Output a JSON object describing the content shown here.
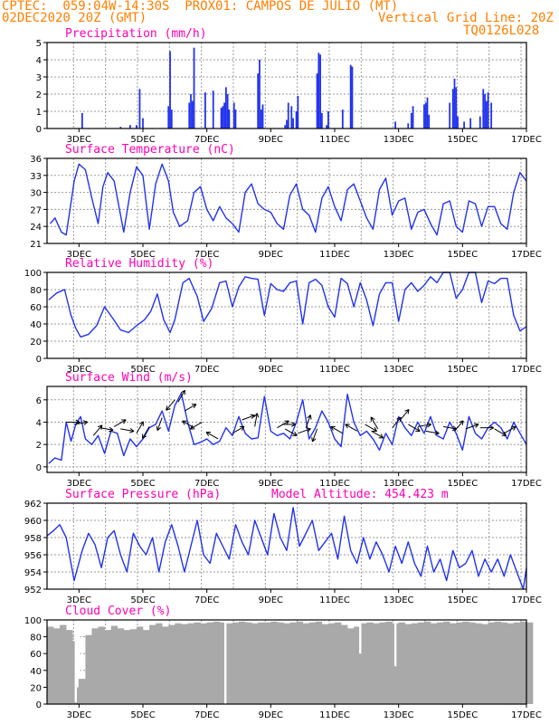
{
  "header": {
    "line1_left": "CPTEC:  059:04W-14:30S  PROX01: CAMPOS DE JULIO (MT)",
    "line2_left": "02DEC2020 20Z (GMT)",
    "line2_right": "Vertical Grid Line: 20Z",
    "line3_right": "TQ0126L028"
  },
  "colors": {
    "header": "#ff7f00",
    "title": "#ff00b0",
    "series": "#2233ee",
    "cloud": "#a9a9a9",
    "grid": "#9a9a9a"
  },
  "x_tick_labels": [
    "3DEC",
    "5DEC",
    "7DEC",
    "9DEC",
    "11DEC",
    "13DEC",
    "15DEC",
    "17DEC"
  ],
  "chart_data": [
    {
      "type": "bar",
      "title": "Precipitation (mm/h)",
      "ylim": [
        0,
        5
      ],
      "yticks": [
        0,
        1,
        2,
        3,
        4,
        5
      ],
      "grid": true,
      "bars": [
        [
          3.1,
          0.9
        ],
        [
          4.3,
          0.1
        ],
        [
          4.6,
          0.2
        ],
        [
          4.8,
          0.2
        ],
        [
          4.9,
          2.3
        ],
        [
          5.0,
          0.6
        ],
        [
          5.8,
          1.3
        ],
        [
          5.85,
          4.5
        ],
        [
          5.9,
          1.1
        ],
        [
          6.45,
          1.5
        ],
        [
          6.5,
          2.0
        ],
        [
          6.55,
          1.6
        ],
        [
          6.6,
          4.7
        ],
        [
          6.95,
          2.1
        ],
        [
          7.2,
          2.2
        ],
        [
          7.45,
          1.2
        ],
        [
          7.5,
          1.3
        ],
        [
          7.55,
          1.5
        ],
        [
          7.6,
          2.4
        ],
        [
          7.65,
          2.0
        ],
        [
          7.7,
          1.1
        ],
        [
          7.85,
          1.5
        ],
        [
          7.9,
          1.1
        ],
        [
          8.6,
          3.2
        ],
        [
          8.65,
          4.0
        ],
        [
          8.7,
          1.1
        ],
        [
          8.75,
          1.4
        ],
        [
          9.45,
          0.2
        ],
        [
          9.5,
          0.5
        ],
        [
          9.55,
          1.5
        ],
        [
          9.65,
          1.3
        ],
        [
          9.7,
          0.6
        ],
        [
          9.8,
          1.0
        ],
        [
          9.85,
          1.9
        ],
        [
          10.45,
          3.2
        ],
        [
          10.5,
          4.4
        ],
        [
          10.55,
          4.3
        ],
        [
          10.6,
          0.9
        ],
        [
          10.75,
          0.2
        ],
        [
          10.8,
          1.0
        ],
        [
          11.25,
          1.1
        ],
        [
          11.5,
          3.7
        ],
        [
          11.55,
          3.6
        ],
        [
          12.9,
          0.4
        ],
        [
          13.3,
          0.3
        ],
        [
          13.4,
          0.9
        ],
        [
          13.45,
          1.3
        ],
        [
          13.8,
          1.4
        ],
        [
          13.85,
          1.5
        ],
        [
          13.9,
          1.8
        ],
        [
          13.95,
          0.8
        ],
        [
          14.6,
          1.5
        ],
        [
          14.7,
          2.3
        ],
        [
          14.75,
          2.9
        ],
        [
          14.8,
          2.4
        ],
        [
          14.85,
          0.7
        ],
        [
          15.05,
          0.4
        ],
        [
          15.25,
          0.6
        ],
        [
          15.55,
          0.7
        ],
        [
          15.65,
          2.3
        ],
        [
          15.7,
          2.0
        ],
        [
          15.75,
          1.6
        ],
        [
          15.8,
          2.1
        ],
        [
          15.9,
          1.5
        ]
      ]
    },
    {
      "type": "line",
      "title": "Surface Temperature (nC)",
      "ylim": [
        21,
        36
      ],
      "yticks": [
        21,
        24,
        27,
        30,
        33,
        36
      ],
      "grid": true,
      "x": [
        2.1,
        2.25,
        2.45,
        2.6,
        2.85,
        3.0,
        3.2,
        3.4,
        3.6,
        3.75,
        3.9,
        4.1,
        4.25,
        4.4,
        4.6,
        4.8,
        5.0,
        5.2,
        5.4,
        5.6,
        5.8,
        5.95,
        6.15,
        6.4,
        6.6,
        6.8,
        7.0,
        7.2,
        7.4,
        7.6,
        7.8,
        8.0,
        8.2,
        8.4,
        8.6,
        8.8,
        9.0,
        9.2,
        9.4,
        9.6,
        9.8,
        10.0,
        10.2,
        10.4,
        10.6,
        10.8,
        11.0,
        11.2,
        11.4,
        11.6,
        11.8,
        12.0,
        12.2,
        12.4,
        12.6,
        12.8,
        13.0,
        13.2,
        13.4,
        13.6,
        13.8,
        14.0,
        14.2,
        14.4,
        14.6,
        14.8,
        15.0,
        15.2,
        15.4,
        15.6,
        15.8,
        16.0,
        16.2,
        16.4,
        16.6,
        16.8,
        17.0
      ],
      "y": [
        24.5,
        25.5,
        23.0,
        22.5,
        32.0,
        35.0,
        34.0,
        29.0,
        24.5,
        31.0,
        33.5,
        32.0,
        27.5,
        23.0,
        30.0,
        34.5,
        33.0,
        23.5,
        31.5,
        35.0,
        32.0,
        26.5,
        24.0,
        25.0,
        30.0,
        31.0,
        27.0,
        25.0,
        27.5,
        25.5,
        24.5,
        23.0,
        30.0,
        31.5,
        28.0,
        27.0,
        26.5,
        24.5,
        23.5,
        29.5,
        31.5,
        27.0,
        26.0,
        23.0,
        29.0,
        31.0,
        27.5,
        25.0,
        30.5,
        31.5,
        28.5,
        25.5,
        23.5,
        30.5,
        32.5,
        26.0,
        28.5,
        29.0,
        23.5,
        26.5,
        27.0,
        24.5,
        22.5,
        28.0,
        28.5,
        24.0,
        23.0,
        28.5,
        28.0,
        24.0,
        27.5,
        27.5,
        24.5,
        23.5,
        30.0,
        33.5,
        32.0
      ]
    },
    {
      "type": "line",
      "title": "Relative Humidity (%)",
      "ylim": [
        0,
        100
      ],
      "yticks": [
        0,
        20,
        40,
        60,
        80,
        100
      ],
      "grid": true,
      "x": [
        2.05,
        2.3,
        2.55,
        2.75,
        2.9,
        3.05,
        3.3,
        3.55,
        3.8,
        4.05,
        4.3,
        4.55,
        4.8,
        5.05,
        5.25,
        5.45,
        5.65,
        5.85,
        6.0,
        6.25,
        6.45,
        6.7,
        6.9,
        7.15,
        7.4,
        7.6,
        7.8,
        8.0,
        8.2,
        8.4,
        8.6,
        8.8,
        9.0,
        9.2,
        9.4,
        9.6,
        9.8,
        10.0,
        10.2,
        10.4,
        10.6,
        10.8,
        11.0,
        11.2,
        11.4,
        11.6,
        11.8,
        12.0,
        12.2,
        12.4,
        12.6,
        12.8,
        13.0,
        13.2,
        13.4,
        13.6,
        13.8,
        14.0,
        14.2,
        14.4,
        14.6,
        14.8,
        15.0,
        15.2,
        15.4,
        15.6,
        15.8,
        16.0,
        16.2,
        16.4,
        16.6,
        16.8,
        17.0
      ],
      "y": [
        68.0,
        76.0,
        80.0,
        50.0,
        35.0,
        25.0,
        28.0,
        38.0,
        60.0,
        47.0,
        33.0,
        30.0,
        38.0,
        45.0,
        55.0,
        75.0,
        45.0,
        30.0,
        45.0,
        88.0,
        93.0,
        72.0,
        43.0,
        58.0,
        88.0,
        90.0,
        60.0,
        83.0,
        95.0,
        93.0,
        92.0,
        50.0,
        87.0,
        80.0,
        78.0,
        88.0,
        90.0,
        40.0,
        88.0,
        92.0,
        85.0,
        60.0,
        48.0,
        93.0,
        87.0,
        60.0,
        88.0,
        68.0,
        38.0,
        75.0,
        88.0,
        88.0,
        43.0,
        80.0,
        88.0,
        78.0,
        85.0,
        95.0,
        88.0,
        100.0,
        100.0,
        70.0,
        80.0,
        100.0,
        100.0,
        65.0,
        90.0,
        87.0,
        93.0,
        93.0,
        50.0,
        32.0,
        37.0
      ]
    },
    {
      "type": "line",
      "title": "Surface Wind (m/s)",
      "ylim": [
        -0.5,
        7.2
      ],
      "yticks": [
        0,
        2,
        4,
        6
      ],
      "grid": true,
      "x": [
        2.05,
        2.25,
        2.45,
        2.6,
        2.75,
        2.9,
        3.05,
        3.2,
        3.4,
        3.6,
        3.8,
        4.0,
        4.2,
        4.4,
        4.6,
        4.8,
        5.0,
        5.2,
        5.4,
        5.6,
        5.8,
        6.0,
        6.2,
        6.4,
        6.6,
        6.8,
        7.0,
        7.2,
        7.4,
        7.6,
        7.8,
        8.0,
        8.2,
        8.4,
        8.6,
        8.8,
        9.0,
        9.2,
        9.4,
        9.6,
        9.8,
        10.0,
        10.2,
        10.4,
        10.6,
        10.8,
        11.0,
        11.2,
        11.4,
        11.6,
        11.8,
        12.0,
        12.2,
        12.4,
        12.6,
        12.8,
        13.0,
        13.2,
        13.4,
        13.6,
        13.8,
        14.0,
        14.2,
        14.4,
        14.6,
        14.8,
        15.0,
        15.2,
        15.4,
        15.6,
        15.8,
        16.0,
        16.2,
        16.4,
        16.6,
        16.8,
        17.0
      ],
      "y": [
        0.3,
        0.8,
        0.6,
        4.0,
        2.3,
        3.8,
        4.5,
        2.5,
        2.0,
        2.8,
        1.2,
        3.2,
        3.0,
        1.0,
        2.5,
        1.8,
        2.5,
        3.5,
        3.8,
        5.0,
        3.2,
        5.5,
        6.6,
        4.0,
        2.0,
        2.2,
        2.5,
        2.0,
        2.3,
        3.5,
        2.8,
        4.5,
        3.0,
        2.5,
        2.6,
        6.3,
        3.2,
        2.8,
        3.0,
        2.5,
        4.0,
        6.0,
        2.5,
        3.5,
        5.0,
        4.0,
        2.5,
        1.8,
        6.5,
        4.0,
        2.8,
        3.2,
        2.5,
        1.5,
        3.0,
        2.0,
        4.5,
        3.5,
        2.8,
        4.0,
        3.0,
        4.5,
        2.8,
        2.5,
        4.0,
        3.0,
        1.5,
        4.5,
        3.0,
        2.5,
        3.5,
        4.0,
        3.5,
        2.5,
        4.0,
        3.0,
        2.0
      ]
    },
    {
      "type": "line",
      "title": "Surface Pressure (hPa)",
      "annotation": "Model Altitude: 454.423 m",
      "ylim": [
        952,
        962
      ],
      "yticks": [
        952,
        954,
        956,
        958,
        960,
        962
      ],
      "grid": true,
      "x": [
        2.0,
        2.2,
        2.4,
        2.6,
        2.85,
        3.1,
        3.3,
        3.5,
        3.7,
        3.9,
        4.1,
        4.3,
        4.5,
        4.7,
        4.9,
        5.1,
        5.3,
        5.5,
        5.7,
        5.9,
        6.1,
        6.3,
        6.5,
        6.7,
        6.9,
        7.1,
        7.3,
        7.5,
        7.7,
        7.9,
        8.1,
        8.3,
        8.5,
        8.7,
        8.9,
        9.1,
        9.3,
        9.5,
        9.7,
        9.9,
        10.1,
        10.3,
        10.5,
        10.7,
        10.9,
        11.1,
        11.3,
        11.5,
        11.7,
        11.9,
        12.1,
        12.3,
        12.5,
        12.7,
        12.9,
        13.1,
        13.3,
        13.5,
        13.7,
        13.9,
        14.1,
        14.3,
        14.5,
        14.7,
        14.9,
        15.1,
        15.3,
        15.5,
        15.7,
        15.9,
        16.1,
        16.3,
        16.5,
        16.7,
        16.9,
        17.0
      ],
      "y": [
        958.2,
        958.8,
        959.5,
        958.0,
        953.0,
        956.5,
        958.5,
        957.2,
        954.5,
        958.0,
        958.8,
        956.0,
        954.0,
        958.5,
        957.0,
        956.0,
        958.0,
        954.0,
        957.5,
        959.5,
        957.0,
        954.0,
        957.0,
        960.0,
        956.0,
        955.0,
        958.5,
        957.0,
        955.5,
        959.5,
        957.5,
        956.0,
        960.0,
        958.0,
        956.0,
        960.8,
        958.0,
        956.5,
        961.5,
        957.0,
        958.5,
        960.0,
        956.5,
        957.5,
        958.5,
        955.5,
        960.5,
        956.5,
        955.0,
        958.0,
        955.5,
        957.5,
        956.0,
        954.0,
        957.0,
        955.0,
        957.5,
        955.0,
        953.5,
        957.0,
        954.0,
        955.5,
        953.0,
        956.5,
        954.5,
        955.0,
        956.5,
        953.5,
        955.5,
        954.0,
        955.5,
        953.5,
        956.0,
        954.0,
        952.0,
        954.5
      ]
    },
    {
      "type": "bar",
      "title": "Cloud Cover (%)",
      "ylim": [
        0,
        100
      ],
      "yticks": [
        0,
        20,
        40,
        60,
        80,
        100
      ],
      "grid": true,
      "x": [
        2.0,
        2.2,
        2.4,
        2.6,
        2.8,
        3.0,
        3.2,
        3.4,
        3.6,
        3.8,
        4.0,
        4.2,
        4.4,
        4.6,
        4.8,
        5.0,
        5.2,
        5.4,
        5.6,
        5.8,
        6.0,
        6.2,
        6.4,
        6.6,
        6.8,
        7.0,
        7.2,
        7.4,
        7.6,
        7.8,
        8.0,
        8.2,
        8.4,
        8.6,
        8.8,
        9.0,
        9.2,
        9.4,
        9.6,
        9.8,
        10.0,
        10.2,
        10.4,
        10.6,
        10.8,
        11.0,
        11.2,
        11.4,
        11.6,
        11.8,
        12.0,
        12.2,
        12.4,
        12.6,
        12.8,
        13.0,
        13.2,
        13.4,
        13.6,
        13.8,
        14.0,
        14.2,
        14.4,
        14.6,
        14.8,
        15.0,
        15.2,
        15.4,
        15.6,
        15.8,
        16.0,
        16.2,
        16.4,
        16.6,
        16.8,
        17.0
      ],
      "values": [
        92,
        90,
        94,
        88,
        75,
        30,
        82,
        90,
        92,
        88,
        93,
        90,
        88,
        89,
        92,
        88,
        94,
        96,
        92,
        94,
        96,
        95,
        96,
        97,
        96,
        97,
        98,
        97,
        96,
        97,
        98,
        97,
        96,
        97,
        97,
        98,
        97,
        96,
        97,
        98,
        96,
        97,
        98,
        95,
        96,
        97,
        94,
        90,
        92,
        96,
        97,
        96,
        97,
        98,
        96,
        97,
        95,
        96,
        97,
        98,
        96,
        97,
        98,
        96,
        97,
        98,
        97,
        96,
        95,
        97,
        98,
        97,
        96,
        97,
        98,
        97
      ],
      "dips": [
        [
          2.9,
          2
        ],
        [
          3.0,
          30
        ],
        [
          2.95,
          20
        ],
        [
          7.58,
          0
        ],
        [
          11.8,
          60
        ],
        [
          12.9,
          45
        ]
      ]
    }
  ],
  "wind_barbs": [
    [
      2.6,
      4.0,
      90
    ],
    [
      2.85,
      3.8,
      80
    ],
    [
      3.45,
      2.8,
      40
    ],
    [
      3.65,
      3.5,
      100
    ],
    [
      4.1,
      3.6,
      60
    ],
    [
      4.3,
      3.4,
      100
    ],
    [
      4.8,
      3.0,
      30
    ],
    [
      5.2,
      3.6,
      210
    ],
    [
      5.6,
      4.4,
      200
    ],
    [
      6.0,
      6.0,
      220
    ],
    [
      6.1,
      5.8,
      30
    ],
    [
      6.3,
      5.0,
      60
    ],
    [
      6.6,
      3.5,
      300
    ],
    [
      6.85,
      4.0,
      240
    ],
    [
      7.35,
      2.5,
      300
    ],
    [
      7.8,
      3.0,
      60
    ],
    [
      8.1,
      4.2,
      70
    ],
    [
      8.5,
      3.6,
      10
    ],
    [
      9.2,
      3.5,
      60
    ],
    [
      9.35,
      3.8,
      90
    ],
    [
      9.45,
      3.4,
      120
    ],
    [
      9.85,
      3.0,
      70
    ],
    [
      10.1,
      3.5,
      20
    ],
    [
      10.45,
      3.4,
      200
    ],
    [
      11.25,
      3.0,
      300
    ],
    [
      11.7,
      3.2,
      300
    ],
    [
      11.95,
      3.8,
      120
    ],
    [
      12.15,
      3.2,
      120
    ],
    [
      12.35,
      3.4,
      330
    ],
    [
      12.8,
      3.5,
      40
    ],
    [
      13.05,
      4.2,
      40
    ],
    [
      13.3,
      3.8,
      120
    ],
    [
      13.6,
      3.6,
      80
    ],
    [
      13.85,
      3.2,
      100
    ],
    [
      14.4,
      3.6,
      100
    ],
    [
      14.75,
      3.2,
      40
    ],
    [
      15.1,
      3.4,
      70
    ],
    [
      15.55,
      3.5,
      90
    ],
    [
      16.0,
      3.4,
      120
    ],
    [
      16.3,
      3.0,
      60
    ]
  ]
}
